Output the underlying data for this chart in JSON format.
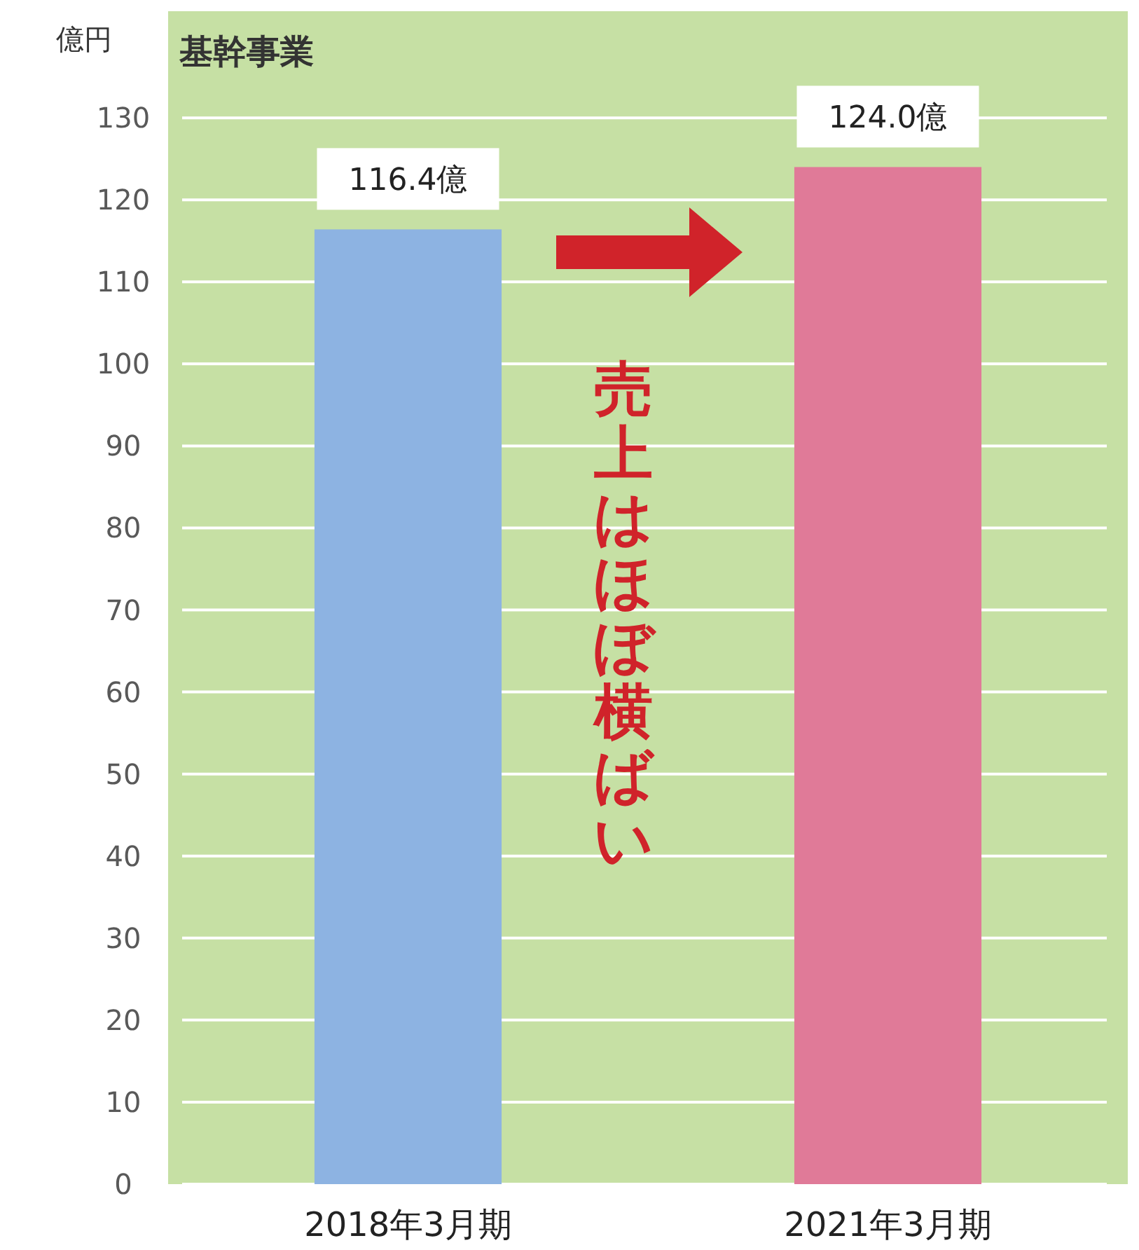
{
  "chart_data": {
    "type": "bar",
    "title": "基幹事業",
    "ylabel": "億円",
    "categories": [
      "2018年3月期",
      "2021年3月期"
    ],
    "values": [
      116.4,
      124.0
    ],
    "colors": [
      "#8db3e2",
      "#e07a98"
    ],
    "value_labels": [
      "116.4億",
      "124.0億"
    ],
    "ylim": [
      0,
      143
    ],
    "yticks": [
      0,
      10,
      20,
      30,
      40,
      50,
      60,
      70,
      80,
      90,
      100,
      110,
      120,
      130
    ],
    "grid": "y",
    "annotations": [
      "売上はほぼ横ばい"
    ]
  }
}
